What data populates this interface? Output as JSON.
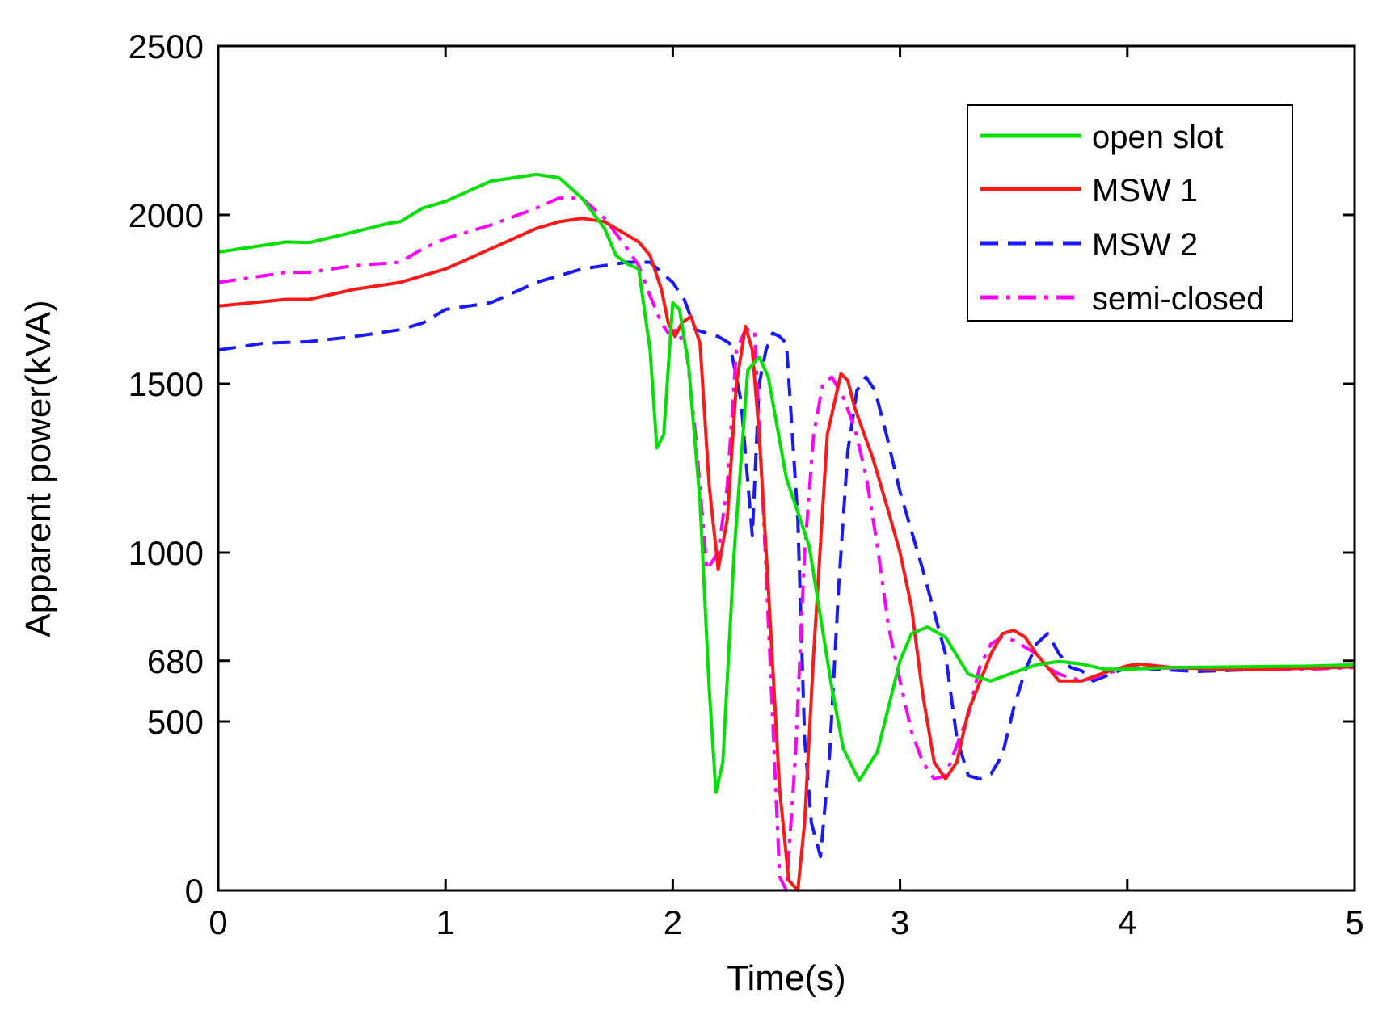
{
  "chart_data": {
    "type": "line",
    "title": "",
    "xlabel": "Time(s)",
    "ylabel": "Apparent power(kVA)",
    "xlim": [
      0,
      5
    ],
    "ylim": [
      0,
      2500
    ],
    "xticks": [
      0,
      1,
      2,
      3,
      4,
      5
    ],
    "yticks": [
      0,
      500,
      680,
      1000,
      1500,
      2000,
      2500
    ],
    "x_tick_labels": [
      "0",
      "1",
      "2",
      "3",
      "4",
      "5"
    ],
    "y_tick_labels": [
      "0",
      "500",
      "680",
      "1000",
      "1500",
      "2000",
      "2500"
    ],
    "grid": false,
    "legend_position": "top-right",
    "series": [
      {
        "name": "open slot",
        "color": "#00e000",
        "dash": "solid",
        "x": [
          0,
          0.3,
          0.4,
          0.6,
          0.75,
          0.8,
          0.9,
          1.0,
          1.2,
          1.4,
          1.5,
          1.6,
          1.7,
          1.75,
          1.8,
          1.85,
          1.9,
          1.93,
          1.96,
          2.0,
          2.03,
          2.07,
          2.12,
          2.16,
          2.19,
          2.22,
          2.27,
          2.33,
          2.38,
          2.42,
          2.5,
          2.6,
          2.7,
          2.75,
          2.82,
          2.9,
          3.0,
          3.05,
          3.12,
          3.2,
          3.3,
          3.4,
          3.5,
          3.6,
          3.7,
          3.8,
          3.9,
          4.0,
          4.2,
          4.5,
          4.8,
          5.0
        ],
        "y": [
          1890,
          1920,
          1918,
          1950,
          1975,
          1980,
          2020,
          2040,
          2100,
          2120,
          2110,
          2050,
          1960,
          1880,
          1855,
          1840,
          1600,
          1310,
          1350,
          1740,
          1720,
          1550,
          1150,
          600,
          290,
          380,
          1000,
          1540,
          1580,
          1520,
          1220,
          1020,
          600,
          420,
          325,
          410,
          680,
          760,
          780,
          750,
          640,
          620,
          645,
          668,
          678,
          670,
          655,
          655,
          660,
          662,
          664,
          668
        ]
      },
      {
        "name": "MSW 1",
        "color": "#ff1a1a",
        "dash": "solid",
        "x": [
          0,
          0.3,
          0.4,
          0.6,
          0.8,
          0.9,
          1.0,
          1.2,
          1.4,
          1.5,
          1.6,
          1.7,
          1.8,
          1.85,
          1.9,
          1.95,
          1.98,
          2.01,
          2.04,
          2.08,
          2.12,
          2.16,
          2.2,
          2.24,
          2.28,
          2.32,
          2.35,
          2.38,
          2.42,
          2.47,
          2.51,
          2.55,
          2.58,
          2.62,
          2.68,
          2.74,
          2.77,
          2.8,
          2.88,
          2.95,
          3.0,
          3.05,
          3.1,
          3.15,
          3.2,
          3.25,
          3.3,
          3.4,
          3.45,
          3.5,
          3.55,
          3.6,
          3.7,
          3.8,
          3.9,
          4.0,
          4.05,
          4.2,
          4.4,
          4.6,
          4.8,
          5.0
        ],
        "y": [
          1730,
          1750,
          1750,
          1780,
          1800,
          1820,
          1840,
          1900,
          1960,
          1980,
          1990,
          1980,
          1940,
          1920,
          1880,
          1780,
          1680,
          1640,
          1680,
          1700,
          1620,
          1200,
          950,
          1100,
          1500,
          1670,
          1600,
          1350,
          900,
          300,
          30,
          0,
          200,
          700,
          1350,
          1530,
          1510,
          1430,
          1280,
          1120,
          1000,
          840,
          580,
          380,
          330,
          380,
          530,
          700,
          760,
          770,
          750,
          700,
          620,
          620,
          645,
          665,
          670,
          660,
          655,
          655,
          658,
          662
        ]
      },
      {
        "name": "MSW 2",
        "color": "#1a1aff",
        "dash": "dashed",
        "x": [
          0,
          0.2,
          0.4,
          0.6,
          0.8,
          0.9,
          1.0,
          1.2,
          1.4,
          1.6,
          1.8,
          1.9,
          2.0,
          2.05,
          2.1,
          2.15,
          2.2,
          2.25,
          2.3,
          2.35,
          2.38,
          2.41,
          2.44,
          2.47,
          2.5,
          2.55,
          2.58,
          2.61,
          2.65,
          2.69,
          2.73,
          2.77,
          2.81,
          2.85,
          2.89,
          2.94,
          3.0,
          3.1,
          3.2,
          3.25,
          3.3,
          3.35,
          3.4,
          3.45,
          3.5,
          3.55,
          3.6,
          3.65,
          3.7,
          3.75,
          3.8,
          3.85,
          4.0,
          4.3,
          4.6,
          5.0
        ],
        "y": [
          1600,
          1620,
          1625,
          1640,
          1660,
          1680,
          1720,
          1740,
          1800,
          1840,
          1860,
          1860,
          1800,
          1750,
          1660,
          1650,
          1640,
          1620,
          1450,
          1050,
          1500,
          1600,
          1650,
          1640,
          1620,
          1100,
          450,
          200,
          100,
          400,
          900,
          1300,
          1480,
          1520,
          1480,
          1350,
          1180,
          950,
          700,
          450,
          340,
          330,
          345,
          400,
          540,
          650,
          730,
          760,
          700,
          660,
          650,
          620,
          660,
          648,
          655,
          662
        ]
      },
      {
        "name": "semi-closed",
        "color": "#ff00ff",
        "dash": "dashdot",
        "x": [
          0,
          0.3,
          0.4,
          0.6,
          0.8,
          0.9,
          1.0,
          1.2,
          1.4,
          1.5,
          1.6,
          1.7,
          1.8,
          1.85,
          1.9,
          1.95,
          1.98,
          2.02,
          2.06,
          2.1,
          2.15,
          2.2,
          2.24,
          2.28,
          2.32,
          2.36,
          2.4,
          2.44,
          2.47,
          2.5,
          2.54,
          2.58,
          2.62,
          2.66,
          2.7,
          2.75,
          2.8,
          2.85,
          2.9,
          2.95,
          3.0,
          3.05,
          3.1,
          3.15,
          3.2,
          3.3,
          3.35,
          3.4,
          3.45,
          3.5,
          3.55,
          3.6,
          3.65,
          3.7,
          3.8,
          3.9,
          4.0,
          4.2,
          4.5,
          4.8,
          5.0
        ],
        "y": [
          1800,
          1830,
          1830,
          1850,
          1860,
          1900,
          1930,
          1970,
          2020,
          2050,
          2050,
          1990,
          1900,
          1850,
          1760,
          1680,
          1650,
          1660,
          1600,
          1350,
          950,
          1000,
          1200,
          1600,
          1660,
          1660,
          1100,
          500,
          40,
          0,
          400,
          1000,
          1350,
          1500,
          1520,
          1460,
          1370,
          1230,
          1020,
          780,
          620,
          470,
          380,
          330,
          340,
          520,
          660,
          730,
          750,
          740,
          720,
          700,
          660,
          640,
          620,
          640,
          660,
          658,
          655,
          655,
          660
        ]
      }
    ]
  }
}
